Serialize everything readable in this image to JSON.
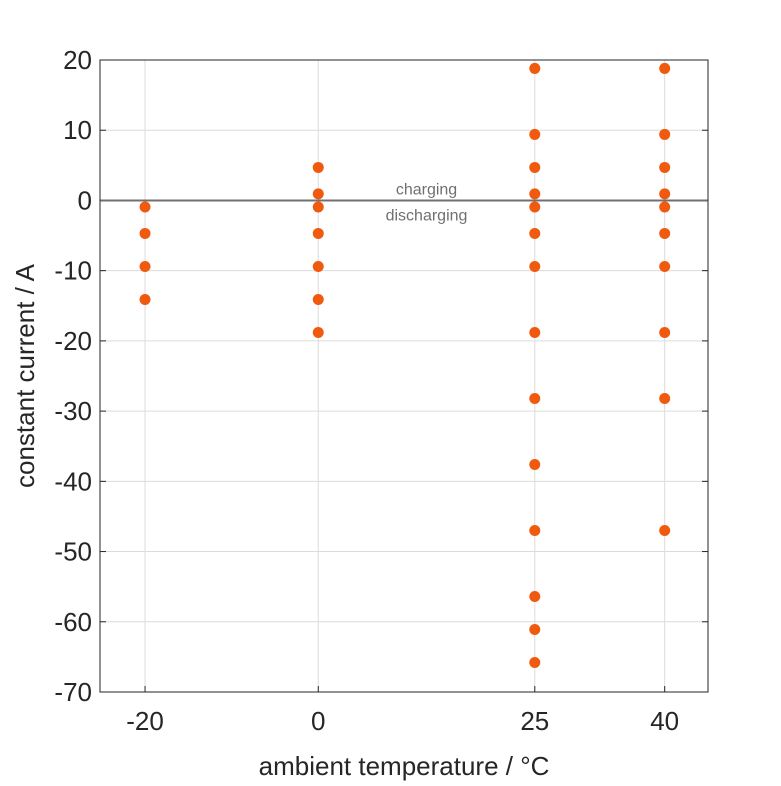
{
  "chart_data": {
    "type": "scatter",
    "xlabel": "ambient temperature / °C",
    "ylabel": "constant current / A",
    "xlim": [
      -25.2,
      45
    ],
    "ylim": [
      -70,
      20
    ],
    "xticks": [
      -20,
      0,
      25,
      40
    ],
    "yticks": [
      20,
      10,
      0,
      -10,
      -20,
      -30,
      -40,
      -50,
      -60,
      -70
    ],
    "grid": true,
    "marker_color": "#F05A0F",
    "reference_line": {
      "y": 0,
      "color": "#707070",
      "label_above": "charging",
      "label_below": "discharging",
      "label_x": 12.5
    },
    "series": [
      {
        "points": [
          [
            -20,
            -0.94
          ],
          [
            -20,
            -4.7
          ],
          [
            -20,
            -9.4
          ],
          [
            -20,
            -14.1
          ],
          [
            0,
            4.7
          ],
          [
            0,
            0.94
          ],
          [
            0,
            -0.94
          ],
          [
            0,
            -4.7
          ],
          [
            0,
            -9.4
          ],
          [
            0,
            -14.1
          ],
          [
            0,
            -18.8
          ],
          [
            25,
            18.8
          ],
          [
            25,
            9.4
          ],
          [
            25,
            4.7
          ],
          [
            25,
            0.94
          ],
          [
            25,
            -0.94
          ],
          [
            25,
            -4.7
          ],
          [
            25,
            -9.4
          ],
          [
            25,
            -18.8
          ],
          [
            25,
            -28.2
          ],
          [
            25,
            -37.6
          ],
          [
            25,
            -47
          ],
          [
            25,
            -56.4
          ],
          [
            25,
            -61.1
          ],
          [
            25,
            -65.8
          ],
          [
            40,
            18.8
          ],
          [
            40,
            9.4
          ],
          [
            40,
            4.7
          ],
          [
            40,
            0.94
          ],
          [
            40,
            -0.94
          ],
          [
            40,
            -4.7
          ],
          [
            40,
            -9.4
          ],
          [
            40,
            -18.8
          ],
          [
            40,
            -28.2
          ],
          [
            40,
            -47
          ]
        ]
      }
    ]
  }
}
